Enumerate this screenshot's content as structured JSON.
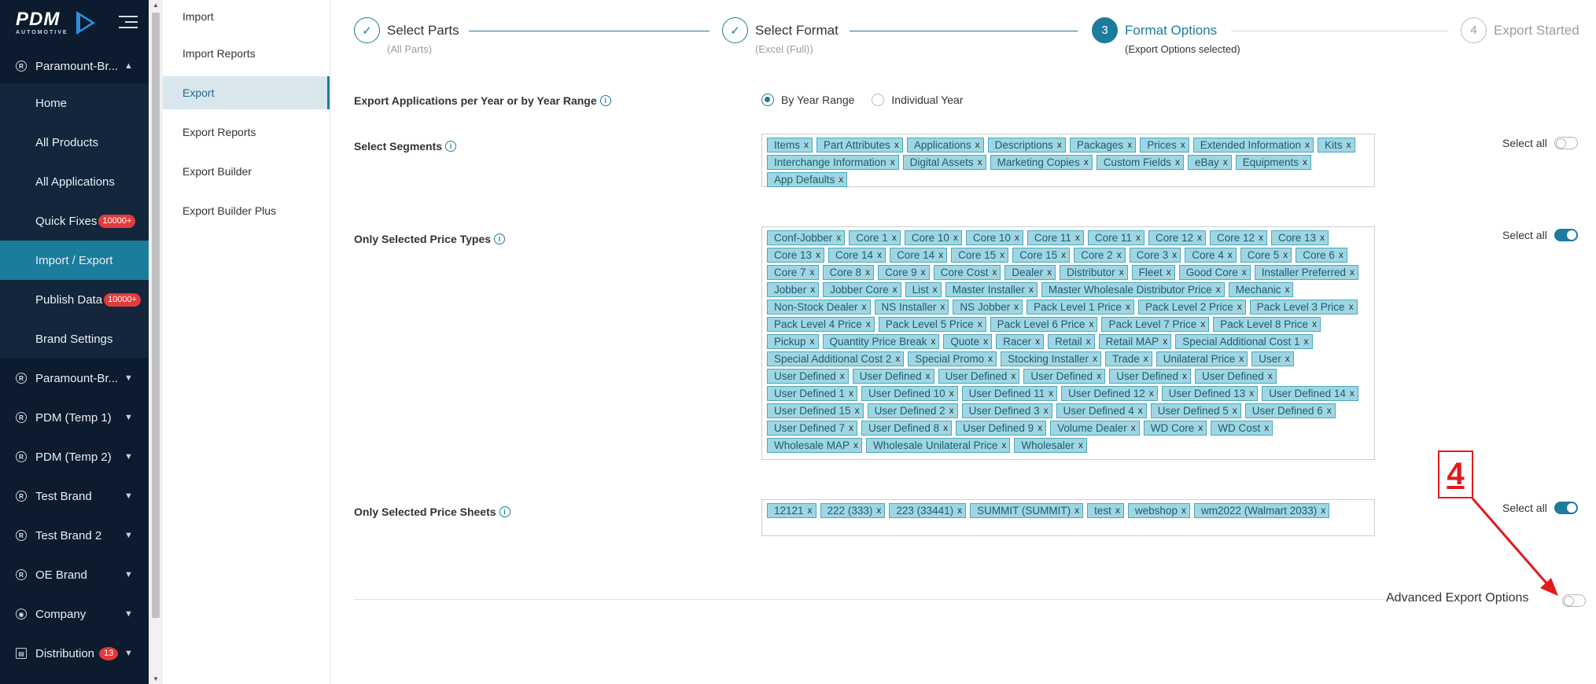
{
  "sidebar": {
    "logo_text": "PDM",
    "logo_sub": "AUTOMOTIVE",
    "top_brand": "Paramount-Br...",
    "top_items": [
      {
        "label": "Home"
      },
      {
        "label": "All Products"
      },
      {
        "label": "All Applications"
      },
      {
        "label": "Quick Fixes",
        "badge": "10000+"
      },
      {
        "label": "Import / Export",
        "active": true
      },
      {
        "label": "Publish Data",
        "badge": "10000+"
      },
      {
        "label": "Brand Settings"
      }
    ],
    "brands": [
      {
        "label": "Paramount-Br...",
        "icon": "registered-icon"
      },
      {
        "label": "PDM (Temp 1)",
        "icon": "registered-icon"
      },
      {
        "label": "PDM (Temp 2)",
        "icon": "registered-icon"
      },
      {
        "label": "Test Brand",
        "icon": "registered-icon"
      },
      {
        "label": "Test Brand 2",
        "icon": "registered-icon"
      },
      {
        "label": "OE Brand",
        "icon": "registered-icon"
      },
      {
        "label": "Company",
        "icon": "globe-icon"
      },
      {
        "label": "Distribution",
        "icon": "distribution-icon",
        "badge": "13"
      }
    ]
  },
  "subnav": {
    "items": [
      "Import",
      "Import Reports",
      "Export",
      "Export Reports",
      "Export Builder",
      "Export Builder Plus"
    ],
    "active": "Export"
  },
  "wizard": {
    "steps": [
      {
        "number": "1",
        "title": "Select Parts",
        "subtitle": "(All Parts)",
        "state": "done"
      },
      {
        "number": "2",
        "title": "Select Format",
        "subtitle": "(Excel (Full))",
        "state": "done"
      },
      {
        "number": "3",
        "title": "Format Options",
        "subtitle": "(Export Options selected)",
        "state": "current"
      },
      {
        "number": "4",
        "title": "Export Started",
        "subtitle": "",
        "state": "todo"
      }
    ]
  },
  "form": {
    "applications_label": "Export Applications per Year or by Year Range",
    "radio_options": [
      "By Year Range",
      "Individual Year"
    ],
    "radio_selected": "By Year Range",
    "segments_label": "Select Segments",
    "segments": [
      "Items",
      "Part Attributes",
      "Applications",
      "Descriptions",
      "Packages",
      "Prices",
      "Extended Information",
      "Kits",
      "Interchange Information",
      "Digital Assets",
      "Marketing Copies",
      "Custom Fields",
      "eBay",
      "Equipments",
      "App Defaults"
    ],
    "segments_select_all": false,
    "price_types_label": "Only Selected Price Types",
    "price_types": [
      "Conf-Jobber",
      "Core 1",
      "Core 10",
      "Core 10",
      "Core 11",
      "Core 11",
      "Core 12",
      "Core 12",
      "Core 13",
      "Core 13",
      "Core 14",
      "Core 14",
      "Core 15",
      "Core 15",
      "Core 2",
      "Core 3",
      "Core 4",
      "Core 5",
      "Core 6",
      "Core 7",
      "Core 8",
      "Core 9",
      "Core Cost",
      "Dealer",
      "Distributor",
      "Fleet",
      "Good Core",
      "Installer Preferred",
      "Jobber",
      "Jobber Core",
      "List",
      "Master Installer",
      "Master Wholesale Distributor Price",
      "Mechanic",
      "Non-Stock Dealer",
      "NS Installer",
      "NS Jobber",
      "Pack Level 1 Price",
      "Pack Level 2 Price",
      "Pack Level 3 Price",
      "Pack Level 4 Price",
      "Pack Level 5 Price",
      "Pack Level 6 Price",
      "Pack Level 7 Price",
      "Pack Level 8 Price",
      "Pickup",
      "Quantity Price Break",
      "Quote",
      "Racer",
      "Retail",
      "Retail MAP",
      "Special Additional Cost 1",
      "Special Additional Cost 2",
      "Special Promo",
      "Stocking Installer",
      "Trade",
      "Unilateral Price",
      "User",
      "User Defined",
      "User Defined",
      "User Defined",
      "User Defined",
      "User Defined",
      "User Defined",
      "User Defined 1",
      "User Defined 10",
      "User Defined 11",
      "User Defined 12",
      "User Defined 13",
      "User Defined 14",
      "User Defined 15",
      "User Defined 2",
      "User Defined 3",
      "User Defined 4",
      "User Defined 5",
      "User Defined 6",
      "User Defined 7",
      "User Defined 8",
      "User Defined 9",
      "Volume Dealer",
      "WD Core",
      "WD Cost",
      "Wholesale MAP",
      "Wholesale Unilateral Price",
      "Wholesaler"
    ],
    "price_types_select_all": true,
    "price_sheets_label": "Only Selected Price Sheets",
    "price_sheets": [
      "12121",
      "222 (333)",
      "223 (33441)",
      "SUMMIT (SUMMIT)",
      "test",
      "webshop",
      "wm2022 (Walmart 2033)"
    ],
    "price_sheets_select_all": true,
    "select_all_label": "Select all",
    "advanced_label": "Advanced Export Options",
    "advanced_enabled": false
  },
  "annotation": {
    "step_number": "4",
    "color": "#e01b1b"
  },
  "colors": {
    "accent": "#1b7c9c",
    "sidebar_bg": "#0c1b2d",
    "tag_bg": "#9ed7e3",
    "badge": "#e23b3b"
  }
}
